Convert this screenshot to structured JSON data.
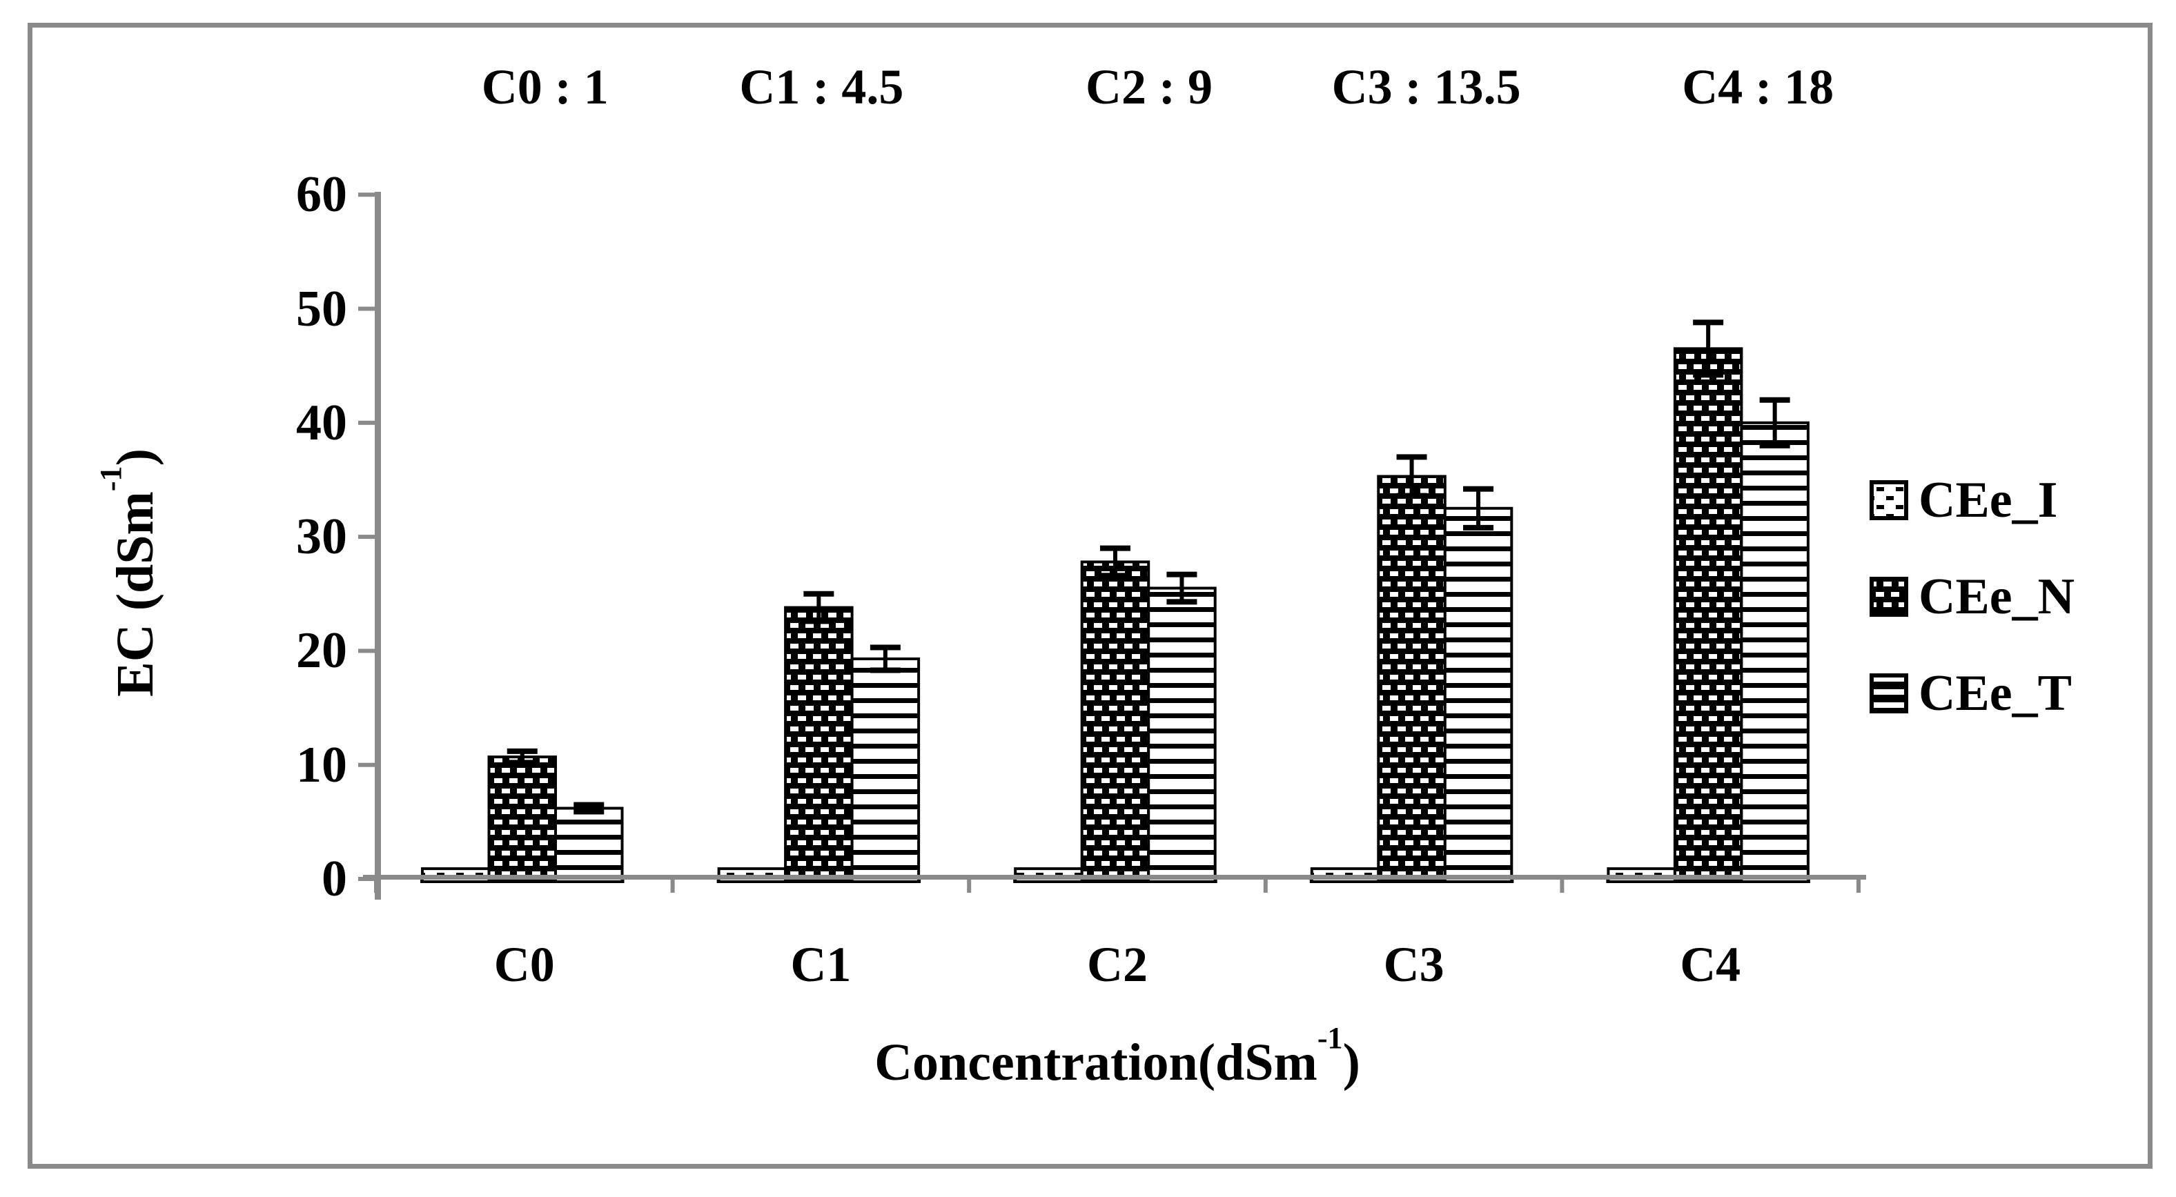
{
  "figure": {
    "frame_color": "#8a8a8a",
    "axis_color": "#8a8a8a",
    "ink_color": "#000000",
    "background_color": "#ffffff"
  },
  "header_annotations": {
    "items": [
      "C0 : 1",
      "C1 : 4.5",
      "C2 : 9",
      "C3 : 13.5",
      "C4 : 18"
    ]
  },
  "y_axis": {
    "title_main": "EC (dSm",
    "title_sup": "-1",
    "title_end": ")",
    "tick_labels": [
      "0",
      "10",
      "20",
      "30",
      "40",
      "50",
      "60"
    ]
  },
  "x_axis": {
    "title_main": "Concentration(dSm",
    "title_sup": "-1",
    "title_end": ")",
    "categories": [
      "C0",
      "C1",
      "C2",
      "C3",
      "C4"
    ]
  },
  "legend": {
    "position": "right",
    "items": [
      {
        "label": "CEe_I",
        "pattern": "dotted"
      },
      {
        "label": "CEe_N",
        "pattern": "dark-dashes"
      },
      {
        "label": "CEe_T",
        "pattern": "horizontal-stripes"
      }
    ]
  },
  "chart_data": {
    "type": "bar",
    "title": "",
    "categories": [
      "C0",
      "C1",
      "C2",
      "C3",
      "C4"
    ],
    "category_concentrations": [
      1,
      4.5,
      9,
      13.5,
      18
    ],
    "series": [
      {
        "name": "CEe_I",
        "pattern": "dotted",
        "values": [
          0.9,
          0.9,
          0.9,
          0.9,
          0.9
        ],
        "errors": [
          0,
          0,
          0,
          0,
          0
        ]
      },
      {
        "name": "CEe_N",
        "pattern": "dark-dashes",
        "values": [
          10.7,
          23.8,
          27.8,
          35.3,
          46.5
        ],
        "errors": [
          0.5,
          1.2,
          1.2,
          1.7,
          2.3
        ]
      },
      {
        "name": "CEe_T",
        "pattern": "horizontal-stripes",
        "values": [
          6.2,
          19.3,
          25.5,
          32.5,
          40.0
        ],
        "errors": [
          0.3,
          1.0,
          1.2,
          1.7,
          2.0
        ]
      }
    ],
    "xlabel": "Concentration(dSm-1)",
    "ylabel": "EC (dSm-1)",
    "ylim": [
      0,
      60
    ],
    "ytick_step": 10,
    "grid": false,
    "error_bars": true,
    "legend_position": "right"
  }
}
